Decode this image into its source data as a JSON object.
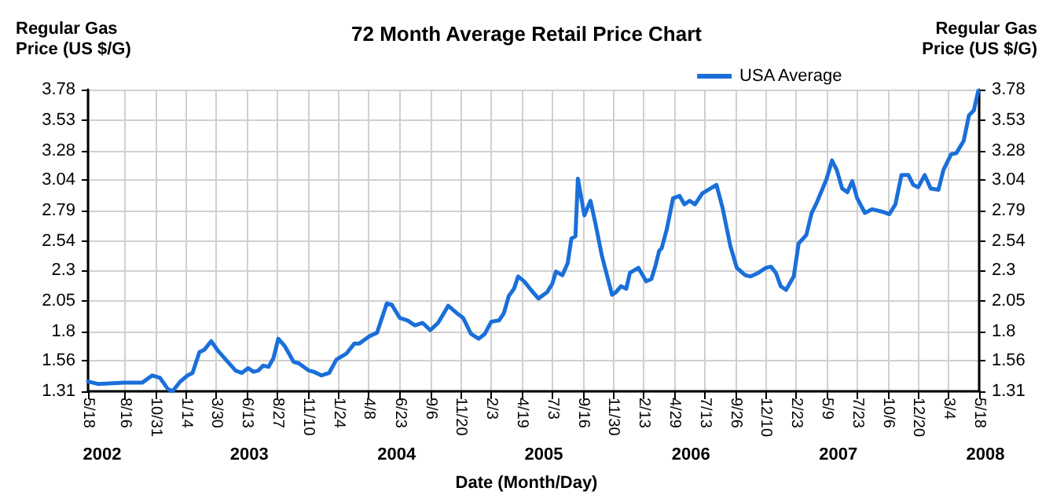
{
  "chart_data": {
    "type": "line",
    "title": "72 Month Average Retail Price Chart",
    "xlabel": "Date (Month/Day)",
    "ylabel": "Regular Gas\nPrice (US $/G)",
    "y2label": "Regular Gas\nPrice (US $/G)",
    "xlim": [
      "2002-05-18",
      "2008-05-18"
    ],
    "xticks": [
      {
        "value": "2002-05-18",
        "label": "5/18"
      },
      {
        "value": "2002-08-16",
        "label": "8/16"
      },
      {
        "value": "2002-10-31",
        "label": "10/31"
      },
      {
        "value": "2003-01-14",
        "label": "1/14"
      },
      {
        "value": "2003-03-30",
        "label": "3/30"
      },
      {
        "value": "2003-06-13",
        "label": "6/13"
      },
      {
        "value": "2003-08-27",
        "label": "8/27"
      },
      {
        "value": "2003-11-10",
        "label": "11/10"
      },
      {
        "value": "2004-01-24",
        "label": "1/24"
      },
      {
        "value": "2004-04-08",
        "label": "4/8"
      },
      {
        "value": "2004-06-23",
        "label": "6/23"
      },
      {
        "value": "2004-09-06",
        "label": "9/6"
      },
      {
        "value": "2004-11-20",
        "label": "11/20"
      },
      {
        "value": "2005-02-03",
        "label": "2/3"
      },
      {
        "value": "2005-04-19",
        "label": "4/19"
      },
      {
        "value": "2005-07-03",
        "label": "7/3"
      },
      {
        "value": "2005-09-16",
        "label": "9/16"
      },
      {
        "value": "2005-11-30",
        "label": "11/30"
      },
      {
        "value": "2006-02-13",
        "label": "2/13"
      },
      {
        "value": "2006-04-29",
        "label": "4/29"
      },
      {
        "value": "2006-07-13",
        "label": "7/13"
      },
      {
        "value": "2006-09-26",
        "label": "9/26"
      },
      {
        "value": "2006-12-10",
        "label": "12/10"
      },
      {
        "value": "2007-02-23",
        "label": "2/23"
      },
      {
        "value": "2007-05-09",
        "label": "5/9"
      },
      {
        "value": "2007-07-23",
        "label": "7/23"
      },
      {
        "value": "2007-10-06",
        "label": "10/6"
      },
      {
        "value": "2007-12-20",
        "label": "12/20"
      },
      {
        "value": "2008-03-04",
        "label": "3/4"
      },
      {
        "value": "2008-05-18",
        "label": "5/18"
      }
    ],
    "ylim": [
      1.31,
      3.78
    ],
    "yticks": [
      1.31,
      1.56,
      1.8,
      2.05,
      2.3,
      2.54,
      2.79,
      3.04,
      3.28,
      3.53,
      3.78
    ],
    "y2lim": [
      1.31,
      3.78
    ],
    "y2ticks": [
      1.31,
      1.56,
      1.8,
      2.05,
      2.3,
      2.54,
      2.79,
      3.04,
      3.28,
      3.53,
      3.78
    ],
    "grid": true,
    "legend": "top right",
    "marker": "none",
    "line_style": "solid",
    "annotations": [
      "2002",
      "2003",
      "2004",
      "2005",
      "2006",
      "2007",
      "2008"
    ],
    "series": [
      {
        "name": "USA Average",
        "color": "#1a6fd9",
        "x": [
          "2002-05-18",
          "2002-06-12",
          "2002-08-14",
          "2002-09-28",
          "2002-10-23",
          "2002-11-11",
          "2002-11-30",
          "2002-12-12",
          "2002-12-31",
          "2003-01-18",
          "2003-01-30",
          "2003-02-16",
          "2003-02-28",
          "2003-03-17",
          "2003-04-03",
          "2003-04-27",
          "2003-05-16",
          "2003-05-31",
          "2003-06-16",
          "2003-06-29",
          "2003-07-11",
          "2003-07-23",
          "2003-08-05",
          "2003-08-17",
          "2003-08-29",
          "2003-09-14",
          "2003-10-06",
          "2003-10-18",
          "2003-11-12",
          "2003-11-24",
          "2003-12-13",
          "2004-01-01",
          "2004-01-19",
          "2004-02-13",
          "2004-03-03",
          "2004-03-15",
          "2004-04-09",
          "2004-04-28",
          "2004-05-22",
          "2004-06-03",
          "2004-06-23",
          "2004-07-12",
          "2004-07-30",
          "2004-08-18",
          "2004-09-06",
          "2004-09-25",
          "2004-10-20",
          "2004-11-14",
          "2004-11-26",
          "2004-12-15",
          "2005-01-03",
          "2005-01-18",
          "2005-02-03",
          "2005-02-22",
          "2005-03-06",
          "2005-03-18",
          "2005-03-31",
          "2005-04-10",
          "2005-04-25",
          "2005-05-14",
          "2005-05-30",
          "2005-06-20",
          "2005-07-03",
          "2005-07-12",
          "2005-07-28",
          "2005-08-10",
          "2005-08-19",
          "2005-08-29",
          "2005-09-04",
          "2005-09-20",
          "2005-10-05",
          "2005-10-18",
          "2005-11-02",
          "2005-11-27",
          "2005-12-06",
          "2005-12-19",
          "2006-01-01",
          "2006-01-10",
          "2006-01-31",
          "2006-02-19",
          "2006-03-04",
          "2006-03-14",
          "2006-03-23",
          "2006-03-29",
          "2006-04-11",
          "2006-04-26",
          "2006-05-12",
          "2006-05-24",
          "2006-06-06",
          "2006-06-19",
          "2006-07-07",
          "2006-08-01",
          "2006-08-11",
          "2006-08-26",
          "2006-09-14",
          "2006-09-30",
          "2006-10-21",
          "2006-11-03",
          "2006-11-22",
          "2006-12-10",
          "2006-12-23",
          "2007-01-04",
          "2007-01-16",
          "2007-01-29",
          "2007-02-17",
          "2007-03-01",
          "2007-03-20",
          "2007-04-02",
          "2007-04-14",
          "2007-05-09",
          "2007-05-22",
          "2007-06-03",
          "2007-06-16",
          "2007-06-29",
          "2007-07-11",
          "2007-07-23",
          "2007-08-11",
          "2007-08-29",
          "2007-09-23",
          "2007-10-10",
          "2007-10-25",
          "2007-11-09",
          "2007-11-26",
          "2007-12-08",
          "2007-12-20",
          "2008-01-05",
          "2008-01-20",
          "2008-02-08",
          "2008-02-20",
          "2008-03-10",
          "2008-03-23",
          "2008-04-10",
          "2008-04-23",
          "2008-05-05",
          "2008-05-16"
        ],
        "values": [
          1.39,
          1.37,
          1.38,
          1.38,
          1.44,
          1.42,
          1.33,
          1.31,
          1.39,
          1.44,
          1.46,
          1.63,
          1.65,
          1.72,
          1.64,
          1.55,
          1.48,
          1.46,
          1.5,
          1.47,
          1.48,
          1.52,
          1.51,
          1.58,
          1.74,
          1.68,
          1.55,
          1.54,
          1.48,
          1.47,
          1.44,
          1.46,
          1.57,
          1.62,
          1.7,
          1.7,
          1.76,
          1.79,
          2.03,
          2.02,
          1.91,
          1.89,
          1.85,
          1.87,
          1.81,
          1.87,
          2.01,
          1.94,
          1.91,
          1.78,
          1.74,
          1.78,
          1.88,
          1.89,
          1.95,
          2.09,
          2.15,
          2.25,
          2.21,
          2.13,
          2.07,
          2.12,
          2.19,
          2.29,
          2.26,
          2.36,
          2.56,
          2.58,
          3.05,
          2.75,
          2.87,
          2.67,
          2.42,
          2.1,
          2.12,
          2.17,
          2.15,
          2.28,
          2.32,
          2.21,
          2.23,
          2.34,
          2.46,
          2.48,
          2.64,
          2.89,
          2.91,
          2.84,
          2.87,
          2.84,
          2.93,
          2.98,
          3.0,
          2.81,
          2.5,
          2.32,
          2.26,
          2.25,
          2.28,
          2.32,
          2.33,
          2.28,
          2.17,
          2.14,
          2.25,
          2.52,
          2.59,
          2.77,
          2.85,
          3.05,
          3.2,
          3.12,
          2.97,
          2.94,
          3.03,
          2.89,
          2.77,
          2.8,
          2.78,
          2.76,
          2.84,
          3.08,
          3.08,
          3.0,
          2.98,
          3.08,
          2.97,
          2.96,
          3.12,
          3.25,
          3.26,
          3.36,
          3.57,
          3.61,
          3.77
        ]
      }
    ]
  }
}
